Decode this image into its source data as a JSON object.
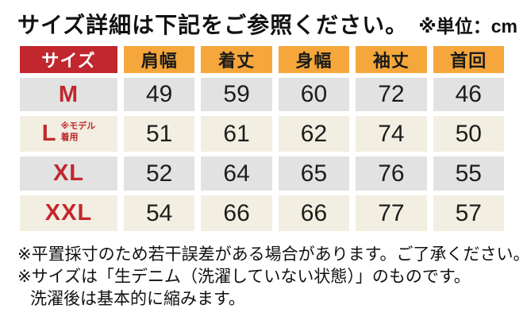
{
  "title": {
    "main": "サイズ詳細は下記をご参照ください。",
    "unit": "※単位：cm"
  },
  "table": {
    "columns": [
      "サイズ",
      "肩幅",
      "着丈",
      "身幅",
      "袖丈",
      "首回"
    ],
    "rows": [
      {
        "size": "M",
        "note": "",
        "values": [
          "49",
          "59",
          "60",
          "72",
          "46"
        ]
      },
      {
        "size": "L",
        "note": "※モデル\n着用",
        "values": [
          "51",
          "61",
          "62",
          "74",
          "50"
        ]
      },
      {
        "size": "XL",
        "note": "",
        "values": [
          "52",
          "64",
          "65",
          "76",
          "55"
        ]
      },
      {
        "size": "XXL",
        "note": "",
        "values": [
          "54",
          "66",
          "66",
          "77",
          "57"
        ]
      }
    ]
  },
  "notes": [
    "※平置採寸のため若干誤差がある場合があります。ご了承ください。",
    "※サイズは「生デニム（洗濯していない状態）」のものです。",
    "洗濯後は基本的に縮みます。"
  ],
  "chart_data": {
    "type": "table",
    "title": "サイズ詳細は下記をご参照ください。",
    "unit": "cm",
    "columns": [
      "サイズ",
      "肩幅",
      "着丈",
      "身幅",
      "袖丈",
      "首回"
    ],
    "rows": [
      [
        "M",
        49,
        59,
        60,
        72,
        46
      ],
      [
        "L（※モデル着用）",
        51,
        61,
        62,
        74,
        50
      ],
      [
        "XL",
        52,
        64,
        65,
        76,
        55
      ],
      [
        "XXL",
        54,
        66,
        66,
        77,
        57
      ]
    ]
  },
  "colors": {
    "header_size_bg": "#c1272d",
    "header_bg": "#f5a73c",
    "row_gray_bg": "#e2e2e2",
    "row_cream_bg": "#f2eee1",
    "size_label_red": "#c1272d",
    "text": "#1a1a1a",
    "background": "#ffffff"
  }
}
